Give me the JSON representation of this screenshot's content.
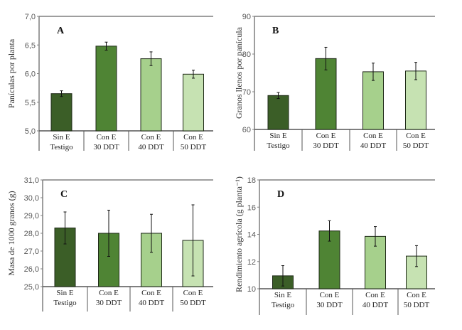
{
  "chart_data": [
    {
      "type": "bar",
      "panel_label": "A",
      "ylabel": "Panículas por planta",
      "ylim": [
        5.0,
        7.0
      ],
      "yticks": [
        "5,0",
        "5,5",
        "6,0",
        "6,5",
        "7,0"
      ],
      "categories": [
        [
          "Sin E",
          "Testigo"
        ],
        [
          "Con E",
          "30 DDT"
        ],
        [
          "Con E",
          "40 DDT"
        ],
        [
          "Con E",
          "50 DDT"
        ]
      ],
      "values": [
        5.65,
        6.48,
        6.26,
        5.99
      ],
      "errors": [
        0.05,
        0.07,
        0.12,
        0.07
      ],
      "grid": false
    },
    {
      "type": "bar",
      "panel_label": "B",
      "ylabel": "Granos llenos por panícula",
      "ylim": [
        60,
        90
      ],
      "yticks": [
        "60",
        "70",
        "80",
        "90"
      ],
      "categories": [
        [
          "Sin E",
          "Testigo"
        ],
        [
          "Con E",
          "30 DDT"
        ],
        [
          "Con E",
          "40 DDT"
        ],
        [
          "Con E",
          "50 DDT"
        ]
      ],
      "values": [
        69.0,
        78.8,
        75.3,
        75.5
      ],
      "errors": [
        0.8,
        3.0,
        2.3,
        2.3
      ],
      "grid": false
    },
    {
      "type": "bar",
      "panel_label": "C",
      "ylabel": "Masa de 1000 granos (g)",
      "ylim": [
        25.0,
        31.0
      ],
      "yticks": [
        "25,0",
        "26,0",
        "27,0",
        "28,0",
        "29,0",
        "30,0",
        "31,0"
      ],
      "categories": [
        [
          "Sin E",
          "Testigo"
        ],
        [
          "Con E",
          "30 DDT"
        ],
        [
          "Con E",
          "40 DDT"
        ],
        [
          "Con E",
          "50 DDT"
        ]
      ],
      "values": [
        28.3,
        28.0,
        28.0,
        27.6
      ],
      "errors": [
        0.9,
        1.3,
        1.07,
        2.0
      ],
      "grid": false
    },
    {
      "type": "bar",
      "panel_label": "D",
      "ylabel": "Rendimiento agrícola (g planta⁻¹)",
      "ylim": [
        10,
        18
      ],
      "yticks": [
        "10",
        "12",
        "14",
        "16",
        "18"
      ],
      "categories": [
        [
          "Sin E",
          "Testigo"
        ],
        [
          "Con E",
          "30 DDT"
        ],
        [
          "Con E",
          "40 DDT"
        ],
        [
          "Con E",
          "50 DDT"
        ]
      ],
      "values": [
        10.95,
        14.25,
        13.85,
        12.4
      ],
      "errors": [
        0.75,
        0.75,
        0.72,
        0.77
      ],
      "grid": false
    }
  ],
  "colors": {
    "bars": [
      "#3b5e27",
      "#4f8434",
      "#a6d08c",
      "#c6e2b2"
    ],
    "outline": "#1f2a18",
    "axis": "#7f7f7f"
  }
}
